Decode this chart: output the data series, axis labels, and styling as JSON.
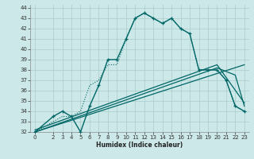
{
  "xlabel": "Humidex (Indice chaleur)",
  "bg_color": "#cce8e8",
  "grid_color": "#aacccc",
  "line_color": "#006666",
  "xlim": [
    -0.5,
    23.5
  ],
  "ylim": [
    32,
    44.3
  ],
  "xticks": [
    0,
    2,
    3,
    4,
    5,
    6,
    7,
    8,
    9,
    10,
    11,
    12,
    13,
    14,
    15,
    16,
    17,
    18,
    19,
    20,
    21,
    22,
    23
  ],
  "yticks": [
    32,
    33,
    34,
    35,
    36,
    37,
    38,
    39,
    40,
    41,
    42,
    43,
    44
  ],
  "line1_x": [
    0,
    2,
    3,
    4,
    5,
    6,
    7,
    8,
    9,
    10,
    11,
    12,
    13,
    14,
    15,
    16,
    17,
    18,
    19,
    20,
    21,
    22,
    23
  ],
  "line1_y": [
    32,
    33,
    33.5,
    33.5,
    34,
    36.5,
    37,
    38.5,
    38.5,
    41,
    43,
    43.5,
    43,
    42.5,
    43,
    42,
    41.5,
    38,
    38,
    38,
    37,
    34.5,
    34
  ],
  "line2_x": [
    0,
    2,
    3,
    4,
    5,
    6,
    7,
    8,
    9,
    10,
    11,
    12,
    13,
    14,
    15,
    16,
    17,
    18,
    19,
    20,
    21,
    22,
    23
  ],
  "line2_y": [
    32,
    33.5,
    34,
    33.5,
    32,
    34.5,
    36.5,
    39,
    39,
    41,
    43,
    43.5,
    43,
    42.5,
    43,
    42,
    41.5,
    38,
    38,
    38,
    37,
    34.5,
    34
  ],
  "line3_x": [
    0,
    23
  ],
  "line3_y": [
    32,
    38.5
  ],
  "line4_x": [
    0,
    20,
    22,
    23
  ],
  "line4_y": [
    32,
    38.2,
    37.5,
    34.5
  ],
  "line5_x": [
    0,
    20,
    23
  ],
  "line5_y": [
    32.2,
    38.5,
    34.8
  ]
}
